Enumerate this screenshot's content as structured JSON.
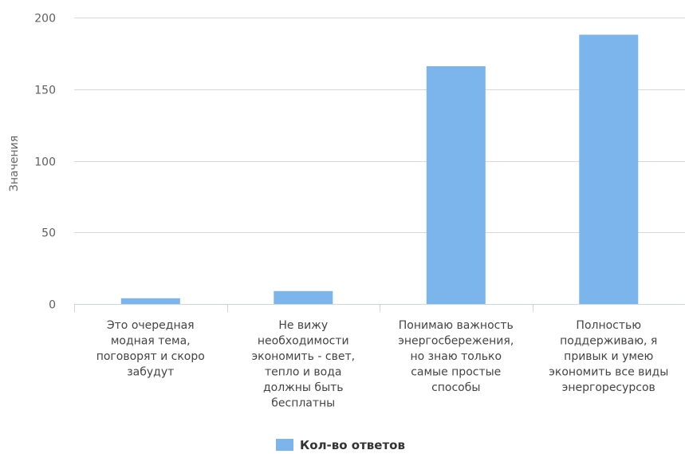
{
  "chart_data": {
    "type": "bar",
    "categories": [
      "Это очередная модная тема, поговорят и скоро забудут",
      "Не вижу необходимости экономить - свет, тепло и вода должны быть бесплатны",
      "Понимаю важность энергосбережения, но знаю только самые простые способы",
      "Полностью поддерживаю, я привык и умею экономить все виды энергоресурсов"
    ],
    "category_lines": [
      [
        "Это очередная",
        "модная тема,",
        "поговорят и скоро",
        "забудут"
      ],
      [
        "Не вижу",
        "необходимости",
        "экономить - свет,",
        "тепло и вода",
        "должны быть",
        "бесплатны"
      ],
      [
        "Понимаю важность",
        "энергосбережения,",
        "но знаю только",
        "самые простые",
        "способы"
      ],
      [
        "Полностью",
        "поддерживаю, я",
        "привык и умею",
        "экономить все виды",
        "энергоресурсов"
      ]
    ],
    "series": [
      {
        "name": "Кол-во ответов",
        "values": [
          4,
          9,
          166,
          188
        ],
        "color": "#7cb5ec"
      }
    ],
    "ylabel": "Значения",
    "xlabel": "",
    "ylim": [
      0,
      200
    ],
    "yticks": [
      0,
      50,
      100,
      150,
      200
    ],
    "grid": true,
    "legend_position": "bottom-center"
  }
}
